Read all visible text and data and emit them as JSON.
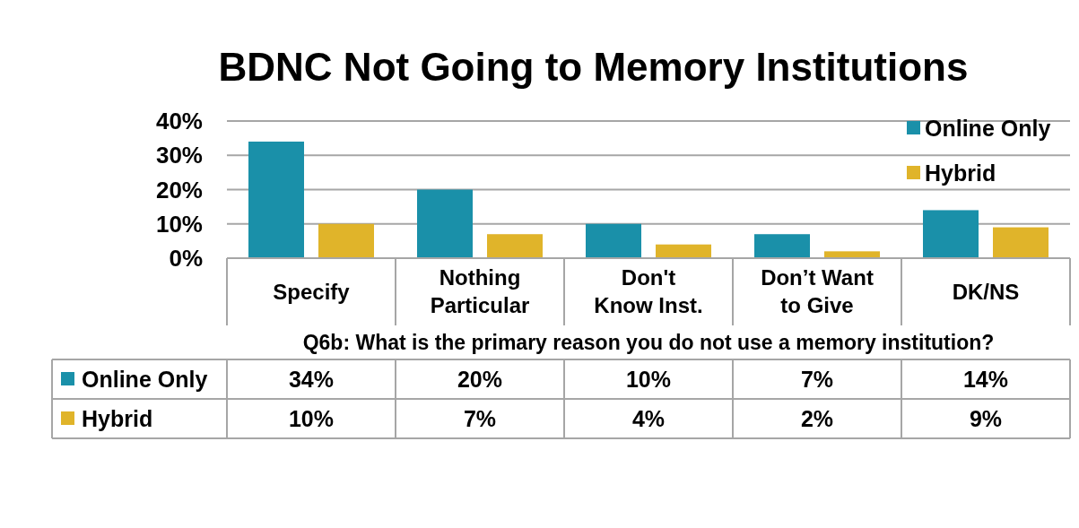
{
  "chart_data": {
    "type": "bar",
    "title": "BDNC Not Going to Memory Institutions",
    "xlabel": "Q6b: What is the primary reason you do not use a memory institution?",
    "categories": [
      "Specify",
      "Nothing Particular",
      "Don't Know Inst.",
      "Don’t Want to Give",
      "DK/NS"
    ],
    "series": [
      {
        "name": "Online Only",
        "color": "#1a90a9",
        "values": [
          34,
          20,
          10,
          7,
          14
        ],
        "value_labels": [
          "34%",
          "20%",
          "10%",
          "7%",
          "14%"
        ]
      },
      {
        "name": "Hybrid",
        "color": "#e0b42a",
        "values": [
          10,
          7,
          4,
          2,
          9
        ],
        "value_labels": [
          "10%",
          "7%",
          "4%",
          "2%",
          "9%"
        ]
      }
    ],
    "ylim": [
      0,
      40
    ],
    "yticks": [
      {
        "value": 0,
        "label": "0%"
      },
      {
        "value": 10,
        "label": "10%"
      },
      {
        "value": 20,
        "label": "20%"
      },
      {
        "value": 30,
        "label": "30%"
      },
      {
        "value": 40,
        "label": "40%"
      }
    ],
    "grid": "y",
    "legend": "top right"
  }
}
